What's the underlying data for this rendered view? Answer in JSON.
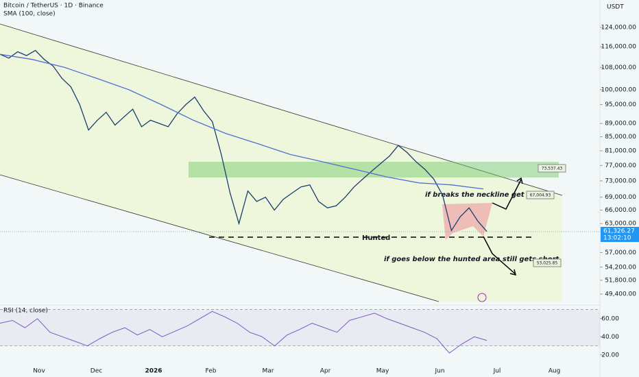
{
  "chart_data": {
    "type": "line",
    "title": "Bitcoin / TetherUS · 1D · Binance",
    "indicator": "SMA (100, close)",
    "currency": "USDT",
    "log_scale": true,
    "ylim": [
      47000,
      135000
    ],
    "yticks": [
      {
        "value": 124000,
        "label": "124,000.00"
      },
      {
        "value": 116000,
        "label": "116,000.00"
      },
      {
        "value": 108000,
        "label": "108,000.00"
      },
      {
        "value": 100000,
        "label": "100,000.00"
      },
      {
        "value": 95000,
        "label": "95,000.00"
      },
      {
        "value": 89000,
        "label": "89,000.00"
      },
      {
        "value": 85000,
        "label": "85,000.00"
      },
      {
        "value": 81000,
        "label": "81,000.00"
      },
      {
        "value": 77000,
        "label": "77,000.00"
      },
      {
        "value": 73000,
        "label": "73,000.00"
      },
      {
        "value": 69000,
        "label": "69,000.00"
      },
      {
        "value": 66000,
        "label": "66,000.00"
      },
      {
        "value": 63000,
        "label": "63,000.00"
      },
      {
        "value": 57000,
        "label": "57,000.00"
      },
      {
        "value": 54200,
        "label": "54,200.00"
      },
      {
        "value": 51800,
        "label": "51,800.00"
      },
      {
        "value": 49400,
        "label": "49,400.00"
      }
    ],
    "x_labels": [
      "Nov",
      "Dec",
      "2026",
      "Feb",
      "Mar",
      "Apr",
      "May",
      "Jun",
      "Jul",
      "Aug"
    ],
    "series": [
      {
        "name": "Price",
        "color": "#1b3d6e",
        "values": [
          113000,
          111500,
          114000,
          112500,
          114500,
          111000,
          108500,
          104000,
          101000,
          95000,
          87000,
          90000,
          92500,
          88500,
          91000,
          93500,
          88000,
          90000,
          89000,
          88000,
          92000,
          95000,
          97500,
          93000,
          89500,
          80000,
          70000,
          63000,
          70500,
          68000,
          69000,
          66000,
          68500,
          70000,
          71500,
          72000,
          68000,
          66500,
          67000,
          69000,
          71500,
          73500,
          75500,
          77500,
          79500,
          82500,
          80500,
          78000,
          76000,
          73500,
          69500,
          61500,
          64500,
          66500,
          63500,
          61300
        ]
      },
      {
        "name": "SMA",
        "color": "#4f6fd6",
        "values": [
          113000,
          111000,
          108000,
          104000,
          100000,
          95000,
          90000,
          86000,
          83000,
          80000,
          78000,
          76000,
          74000,
          72500,
          72000,
          71000
        ]
      }
    ],
    "current_price": "61,326.27",
    "countdown": "13:02:10",
    "annotations": {
      "hunted": "Hunted",
      "long": "if breaks the neckline get a long",
      "short": "if goes below the hunted area still gets short",
      "target_high": "73,537.43",
      "target_mid": "67,004.93",
      "target_low": "53,025.85"
    },
    "rsi": {
      "title": "RSI (14, close)",
      "color": "#7e57c2",
      "ylim": [
        7,
        75
      ],
      "yticks": [
        {
          "value": 60,
          "label": "60.00"
        },
        {
          "value": 40,
          "label": "40.00"
        },
        {
          "value": 20,
          "label": "20.00"
        }
      ],
      "bands": [
        70,
        30
      ],
      "values": [
        55,
        58,
        50,
        60,
        45,
        40,
        35,
        30,
        38,
        45,
        50,
        42,
        48,
        40,
        46,
        52,
        60,
        68,
        62,
        55,
        45,
        40,
        30,
        42,
        48,
        55,
        50,
        45,
        58,
        62,
        66,
        60,
        55,
        50,
        45,
        38,
        22,
        32,
        40,
        36
      ]
    }
  }
}
